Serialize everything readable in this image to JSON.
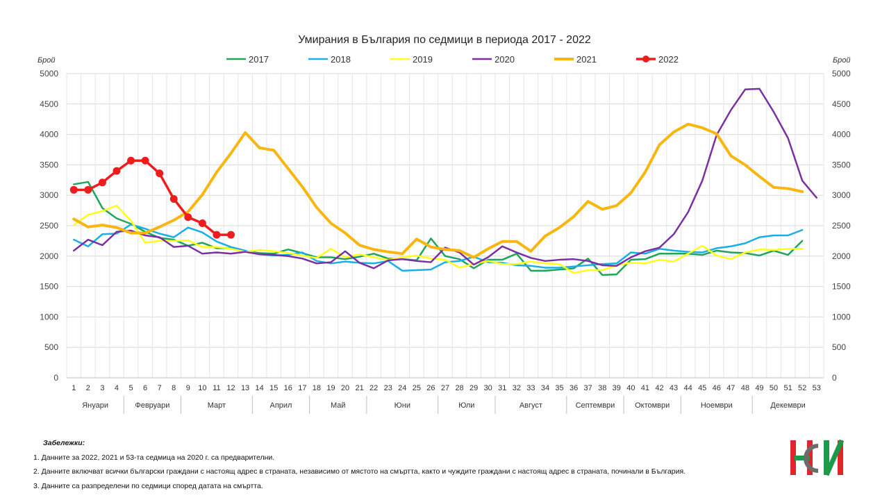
{
  "chart_data": {
    "type": "line",
    "title": "Умирания в България по седмици в периода 2017 - 2022",
    "ylabel_left": "Брой",
    "ylabel_right": "Брой",
    "ylim": [
      0,
      5000
    ],
    "yticks": [
      "0",
      "500",
      "1000",
      "1500",
      "2000",
      "2500",
      "3000",
      "3500",
      "4000",
      "4500",
      "5000"
    ],
    "x": [
      "1",
      "2",
      "3",
      "4",
      "5",
      "6",
      "7",
      "8",
      "9",
      "10",
      "11",
      "12",
      "13",
      "14",
      "15",
      "16",
      "17",
      "18",
      "19",
      "20",
      "21",
      "22",
      "23",
      "24",
      "25",
      "26",
      "27",
      "28",
      "29",
      "30",
      "31",
      "32",
      "33",
      "34",
      "35",
      "36",
      "37",
      "38",
      "39",
      "40",
      "41",
      "42",
      "43",
      "44",
      "45",
      "46",
      "47",
      "48",
      "49",
      "50",
      "51",
      "52",
      "53"
    ],
    "months": [
      {
        "label": "Януари",
        "start": 1,
        "end": 4
      },
      {
        "label": "Февруари",
        "start": 5,
        "end": 8
      },
      {
        "label": "Март",
        "start": 9,
        "end": 13
      },
      {
        "label": "Април",
        "start": 14,
        "end": 17
      },
      {
        "label": "Май",
        "start": 18,
        "end": 21
      },
      {
        "label": "Юни",
        "start": 22,
        "end": 26
      },
      {
        "label": "Юли",
        "start": 27,
        "end": 30
      },
      {
        "label": "Август",
        "start": 31,
        "end": 35
      },
      {
        "label": "Септември",
        "start": 36,
        "end": 39
      },
      {
        "label": "Октомври",
        "start": 40,
        "end": 43
      },
      {
        "label": "Ноември",
        "start": 44,
        "end": 48
      },
      {
        "label": "Декември",
        "start": 49,
        "end": 53
      }
    ],
    "legend_position": "top",
    "grid": true,
    "series": [
      {
        "name": "2017",
        "color": "#1fa55a",
        "width": 2.5,
        "markers": false,
        "values": [
          3180,
          3220,
          2790,
          2620,
          2530,
          2400,
          2300,
          2270,
          2170,
          2220,
          2130,
          2130,
          2080,
          2050,
          2040,
          2110,
          2050,
          1980,
          1980,
          1950,
          1990,
          2040,
          1960,
          1950,
          1930,
          2290,
          2000,
          1950,
          1800,
          1940,
          1940,
          2040,
          1760,
          1760,
          1780,
          1800,
          1960,
          1690,
          1700,
          1940,
          1950,
          2040,
          2040,
          2040,
          2020,
          2090,
          2060,
          2050,
          2010,
          2090,
          2020,
          2250,
          null
        ]
      },
      {
        "name": "2018",
        "color": "#19aee8",
        "width": 2.5,
        "markers": false,
        "values": [
          2270,
          2160,
          2360,
          2370,
          2520,
          2450,
          2370,
          2310,
          2470,
          2390,
          2240,
          2150,
          2090,
          2030,
          2010,
          2020,
          2060,
          1920,
          1880,
          1910,
          1890,
          1880,
          1920,
          1760,
          1770,
          1780,
          1900,
          1920,
          1990,
          1900,
          1890,
          1850,
          1840,
          1810,
          1810,
          1830,
          1850,
          1870,
          1880,
          2060,
          2040,
          2120,
          2090,
          2070,
          2060,
          2130,
          2160,
          2210,
          2310,
          2340,
          2340,
          2430,
          null
        ]
      },
      {
        "name": "2019",
        "color": "#ffff1a",
        "width": 2.5,
        "markers": false,
        "values": [
          2510,
          2680,
          2740,
          2830,
          2580,
          2220,
          2250,
          2250,
          2260,
          2150,
          2150,
          2120,
          2070,
          2100,
          2080,
          2050,
          2010,
          1970,
          2120,
          1980,
          2030,
          1980,
          1940,
          1980,
          2010,
          1960,
          1940,
          1810,
          1870,
          1920,
          1870,
          1870,
          1910,
          1880,
          1870,
          1720,
          1770,
          1770,
          1850,
          1890,
          1880,
          1940,
          1910,
          2040,
          2170,
          2010,
          1950,
          2060,
          2110,
          2100,
          2120,
          2120,
          null
        ]
      },
      {
        "name": "2020",
        "color": "#7b2fa0",
        "width": 2.5,
        "markers": false,
        "values": [
          2090,
          2270,
          2180,
          2400,
          2420,
          2340,
          2310,
          2150,
          2170,
          2040,
          2060,
          2040,
          2070,
          2030,
          2020,
          2000,
          1960,
          1880,
          1900,
          2080,
          1890,
          1800,
          1930,
          1950,
          1920,
          1900,
          2140,
          2060,
          1860,
          1980,
          2160,
          2060,
          1970,
          1920,
          1940,
          1950,
          1920,
          1850,
          1840,
          1980,
          2080,
          2140,
          2360,
          2720,
          3240,
          3990,
          4400,
          4740,
          4750,
          4370,
          3940,
          3240,
          2960
        ]
      },
      {
        "name": "2021",
        "color": "#f8b60f",
        "width": 4,
        "markers": false,
        "values": [
          2610,
          2480,
          2510,
          2470,
          2380,
          2380,
          2480,
          2590,
          2730,
          3010,
          3380,
          3690,
          4030,
          3780,
          3740,
          3440,
          3140,
          2800,
          2540,
          2380,
          2180,
          2110,
          2070,
          2040,
          2280,
          2150,
          2110,
          2090,
          1980,
          2120,
          2240,
          2240,
          2080,
          2330,
          2470,
          2650,
          2900,
          2770,
          2830,
          3040,
          3380,
          3830,
          4040,
          4170,
          4110,
          4010,
          3650,
          3500,
          3310,
          3130,
          3110,
          3060,
          null
        ]
      },
      {
        "name": "2022",
        "color": "#ee1c1c",
        "width": 3.5,
        "markers": true,
        "values": [
          3090,
          3090,
          3210,
          3400,
          3570,
          3570,
          3360,
          2940,
          2640,
          2540,
          2350,
          2350,
          null,
          null,
          null,
          null,
          null,
          null,
          null,
          null,
          null,
          null,
          null,
          null,
          null,
          null,
          null,
          null,
          null,
          null,
          null,
          null,
          null,
          null,
          null,
          null,
          null,
          null,
          null,
          null,
          null,
          null,
          null,
          null,
          null,
          null,
          null,
          null,
          null,
          null,
          null,
          null,
          null
        ]
      }
    ]
  },
  "notes": {
    "title": "Забележки:",
    "items": [
      "1. Данните за 2022, 2021 и 53-та седмица на 2020 г. са предварителни.",
      "2. Данните включват всички български граждани с настоящ адрес в страната, независимо от мястото на смъртта, както и чуждите граждани с настоящ адрес в страната, починали в България.",
      "3. Данните са разпределени по седмици според датата на смъртта."
    ]
  },
  "logo": {
    "colors": [
      "#e0262a",
      "#1b9b4a",
      "#6b6b6b"
    ]
  }
}
